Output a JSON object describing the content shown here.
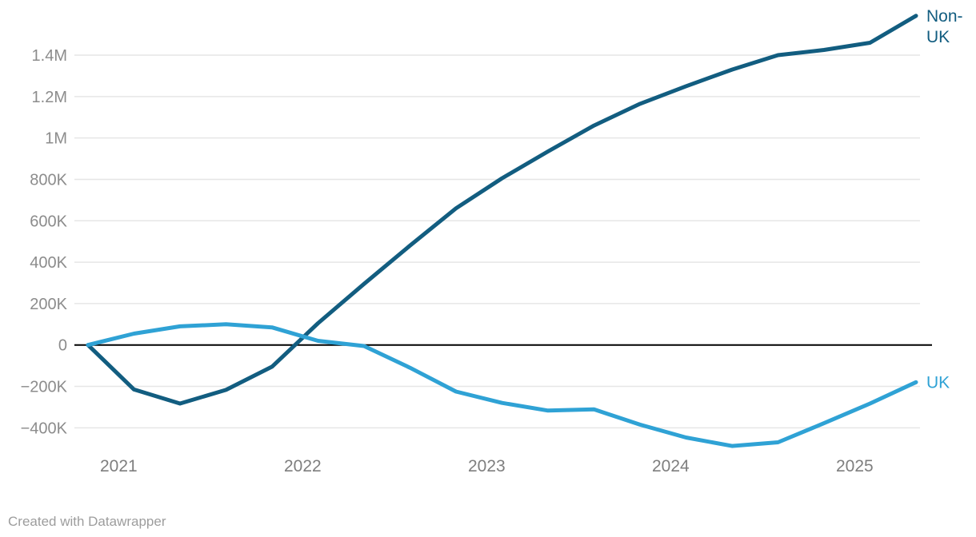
{
  "footer": {
    "credit": "Created with Datawrapper"
  },
  "chart_data": {
    "type": "line",
    "x": [
      "Nov 2020",
      "Feb 2021",
      "May 2021",
      "Aug 2021",
      "Nov 2021",
      "Feb 2022",
      "May 2022",
      "Aug 2022",
      "Nov 2022",
      "Feb 2023",
      "May 2023",
      "Aug 2023",
      "Nov 2023",
      "Feb 2024",
      "May 2024",
      "Aug 2024",
      "Nov 2024",
      "Feb 2025",
      "May 2025"
    ],
    "series": [
      {
        "name": "Non-UK",
        "label_lines": [
          "Non-",
          "UK"
        ],
        "color": "#125d80",
        "values": [
          0,
          -215000,
          -283000,
          -217000,
          -105000,
          105000,
          295000,
          480000,
          660000,
          805000,
          935000,
          1060000,
          1165000,
          1250000,
          1330000,
          1400000,
          1425000,
          1460000,
          1590000
        ]
      },
      {
        "name": "UK",
        "label_lines": [
          "UK"
        ],
        "color": "#2fa2d5",
        "values": [
          0,
          55000,
          90000,
          100000,
          85000,
          20000,
          -5000,
          -110000,
          -225000,
          -280000,
          -317000,
          -311000,
          -385000,
          -447000,
          -488000,
          -470000,
          -378000,
          -283000,
          -180000
        ]
      }
    ],
    "y_axis": {
      "ticks": [
        {
          "value": 1400000,
          "label": "1.4M"
        },
        {
          "value": 1200000,
          "label": "1.2M"
        },
        {
          "value": 1000000,
          "label": "1M"
        },
        {
          "value": 800000,
          "label": "800K"
        },
        {
          "value": 600000,
          "label": "600K"
        },
        {
          "value": 400000,
          "label": "400K"
        },
        {
          "value": 200000,
          "label": "200K"
        },
        {
          "value": 0,
          "label": "0"
        },
        {
          "value": -200000,
          "label": "−200K"
        },
        {
          "value": -400000,
          "label": "−400K"
        }
      ],
      "ylim": [
        -500000,
        1650000
      ],
      "grid": true,
      "zero_baseline": true
    },
    "x_axis": {
      "ticks": [
        {
          "label": "2021",
          "month_offset": 2
        },
        {
          "label": "2022",
          "month_offset": 14
        },
        {
          "label": "2023",
          "month_offset": 26
        },
        {
          "label": "2024",
          "month_offset": 38
        },
        {
          "label": "2025",
          "month_offset": 50
        }
      ]
    },
    "title": "",
    "legend_position": "line-end-labels"
  },
  "colors": {
    "grid": "#e6e6e6",
    "zero_line": "#000000",
    "axis_text": "#8c8c8c"
  }
}
